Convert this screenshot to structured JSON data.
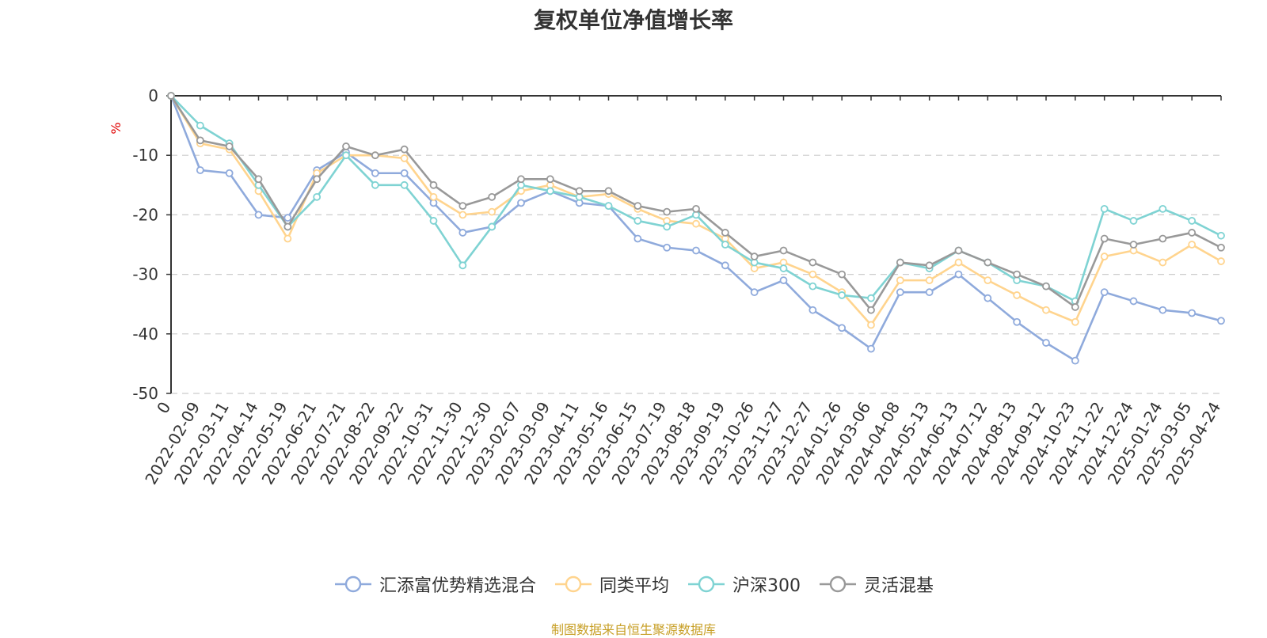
{
  "chart_data": {
    "type": "line",
    "title": "复权单位净值增长率",
    "ylabel": "%",
    "ylim": [
      -50,
      0
    ],
    "yticks": [
      0,
      -10,
      -20,
      -30,
      -40,
      -50
    ],
    "x_tick_labels": [
      "0",
      "2022-02-09",
      "2022-03-11",
      "2022-04-14",
      "2022-05-19",
      "2022-06-21",
      "2022-07-21",
      "2022-08-22",
      "2022-09-22",
      "2022-10-31",
      "2022-11-30",
      "2022-12-30",
      "2023-02-07",
      "2023-03-09",
      "2023-04-11",
      "2023-05-16",
      "2023-06-15",
      "2023-07-19",
      "2023-08-18",
      "2023-09-19",
      "2023-10-26",
      "2023-11-27",
      "2023-12-27",
      "2024-01-26",
      "2024-03-06",
      "2024-04-08",
      "2024-05-13",
      "2024-06-13",
      "2024-07-12",
      "2024-08-13",
      "2024-09-12",
      "2024-10-23",
      "2024-11-22",
      "2024-12-24",
      "2025-01-24",
      "2025-03-05",
      "2025-04-24"
    ],
    "grid": true,
    "legend_position": "bottom",
    "series": [
      {
        "name": "汇添富优势精选混合",
        "color": "#8faadc",
        "values": [
          0,
          -12.5,
          -13,
          -20,
          -20.5,
          -12.5,
          -9.5,
          -13,
          -13,
          -18,
          -23,
          -22,
          -18,
          -16,
          -18,
          -18.5,
          -24,
          -25.5,
          -26,
          -28.5,
          -33,
          -31,
          -36,
          -39,
          -42.5,
          -33,
          -33,
          -30,
          -34,
          -38,
          -41.5,
          -44.5,
          -33,
          -34.5,
          -36,
          -36.5,
          -37.8
        ]
      },
      {
        "name": "同类平均",
        "color": "#ffd48e",
        "values": [
          0,
          -8,
          -9,
          -16,
          -24,
          -13,
          -10,
          -10,
          -10.5,
          -17,
          -20,
          -19.5,
          -16,
          -15,
          -17,
          -16.5,
          -19,
          -21,
          -21.5,
          -24,
          -29,
          -28,
          -30,
          -33,
          -38.5,
          -31,
          -31,
          -28,
          -31,
          -33.5,
          -36,
          -38,
          -27,
          -26,
          -28,
          -25,
          -27.8
        ]
      },
      {
        "name": "沪深300",
        "color": "#7fd3d3",
        "values": [
          0,
          -5,
          -8,
          -15,
          -22,
          -17,
          -10,
          -15,
          -15,
          -21,
          -28.5,
          -22,
          -15,
          -16,
          -17,
          -18.5,
          -21,
          -22,
          -20,
          -25,
          -28,
          -29,
          -32,
          -33.5,
          -34,
          -28,
          -29,
          -26,
          -28,
          -31,
          -32,
          -34.5,
          -19,
          -21,
          -19,
          -21,
          -23.5
        ]
      },
      {
        "name": "灵活混基",
        "color": "#999999",
        "values": [
          0,
          -7.5,
          -8.5,
          -14,
          -22,
          -14,
          -8.5,
          -10,
          -9,
          -15,
          -18.5,
          -17,
          -14,
          -14,
          -16,
          -16,
          -18.5,
          -19.5,
          -19,
          -23,
          -27,
          -26,
          -28,
          -30,
          -36,
          -28,
          -28.5,
          -26,
          -28,
          -30,
          -32,
          -35.5,
          -24,
          -25,
          -24,
          -23,
          -25.5
        ]
      }
    ]
  },
  "source_note": "制图数据来自恒生聚源数据库"
}
